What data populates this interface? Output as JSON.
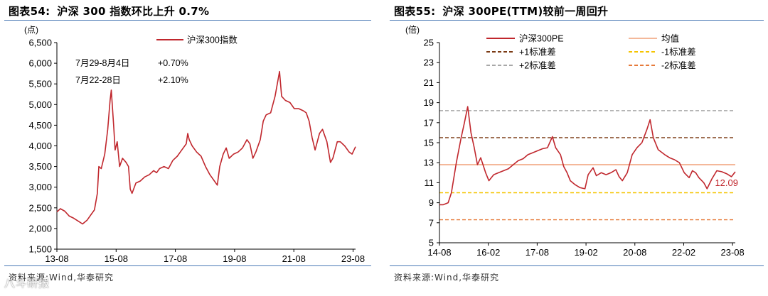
{
  "left": {
    "title_num": "图表54:",
    "title_text": "沪深 300 指数环比上升 0.7%",
    "source": "资料来源:Wind,华泰研究",
    "annotation_rows": [
      {
        "period": "7月29-8月4日",
        "change": "+0.70%"
      },
      {
        "period": "7月22-28日",
        "change": "+2.10%"
      }
    ]
  },
  "right": {
    "title_num": "图表55:",
    "title_text": "沪深 300PE(TTM)较前一周回升",
    "source": "资料来源:Wind,华泰研究",
    "end_label": "12.09"
  },
  "watermark": "八斗研报",
  "chart_data": [
    {
      "type": "line",
      "ylabel": "(点)",
      "ylim": [
        1500,
        6500
      ],
      "yticks": [
        1500,
        2000,
        2500,
        3000,
        3500,
        4000,
        4500,
        5000,
        5500,
        6000,
        6500
      ],
      "x_domain": [
        2013.583,
        2023.667
      ],
      "xticks": [
        {
          "v": 2013.583,
          "label": "13-08"
        },
        {
          "v": 2015.583,
          "label": "15-08"
        },
        {
          "v": 2017.583,
          "label": "17-08"
        },
        {
          "v": 2019.583,
          "label": "19-08"
        },
        {
          "v": 2021.583,
          "label": "21-08"
        },
        {
          "v": 2023.583,
          "label": "23-08"
        }
      ],
      "legend_position": "top-center",
      "grid": false,
      "series": [
        {
          "name": "沪深300指数",
          "color": "#c0272d",
          "points": [
            [
              2013.583,
              2400
            ],
            [
              2013.7,
              2480
            ],
            [
              2013.85,
              2420
            ],
            [
              2014.0,
              2300
            ],
            [
              2014.15,
              2250
            ],
            [
              2014.3,
              2180
            ],
            [
              2014.45,
              2110
            ],
            [
              2014.6,
              2200
            ],
            [
              2014.75,
              2350
            ],
            [
              2014.85,
              2450
            ],
            [
              2014.95,
              2850
            ],
            [
              2015.0,
              3500
            ],
            [
              2015.08,
              3450
            ],
            [
              2015.2,
              3800
            ],
            [
              2015.3,
              4400
            ],
            [
              2015.38,
              5100
            ],
            [
              2015.42,
              5350
            ],
            [
              2015.5,
              4500
            ],
            [
              2015.55,
              3900
            ],
            [
              2015.62,
              4100
            ],
            [
              2015.7,
              3500
            ],
            [
              2015.8,
              3700
            ],
            [
              2015.92,
              3600
            ],
            [
              2016.0,
              3500
            ],
            [
              2016.06,
              2950
            ],
            [
              2016.12,
              2850
            ],
            [
              2016.25,
              3100
            ],
            [
              2016.4,
              3150
            ],
            [
              2016.55,
              3250
            ],
            [
              2016.7,
              3300
            ],
            [
              2016.85,
              3400
            ],
            [
              2016.95,
              3350
            ],
            [
              2017.05,
              3450
            ],
            [
              2017.2,
              3500
            ],
            [
              2017.35,
              3450
            ],
            [
              2017.5,
              3650
            ],
            [
              2017.65,
              3750
            ],
            [
              2017.8,
              3900
            ],
            [
              2017.95,
              4050
            ],
            [
              2018.0,
              4300
            ],
            [
              2018.05,
              4150
            ],
            [
              2018.15,
              4000
            ],
            [
              2018.3,
              3850
            ],
            [
              2018.45,
              3750
            ],
            [
              2018.6,
              3500
            ],
            [
              2018.75,
              3300
            ],
            [
              2018.9,
              3150
            ],
            [
              2019.0,
              3050
            ],
            [
              2019.08,
              3500
            ],
            [
              2019.2,
              3800
            ],
            [
              2019.3,
              3950
            ],
            [
              2019.4,
              3700
            ],
            [
              2019.55,
              3800
            ],
            [
              2019.7,
              3850
            ],
            [
              2019.85,
              3950
            ],
            [
              2020.0,
              4150
            ],
            [
              2020.1,
              4050
            ],
            [
              2020.2,
              3700
            ],
            [
              2020.3,
              3850
            ],
            [
              2020.45,
              4150
            ],
            [
              2020.55,
              4600
            ],
            [
              2020.65,
              4750
            ],
            [
              2020.8,
              4800
            ],
            [
              2020.95,
              5200
            ],
            [
              2021.1,
              5800
            ],
            [
              2021.17,
              5200
            ],
            [
              2021.3,
              5100
            ],
            [
              2021.45,
              5050
            ],
            [
              2021.6,
              4900
            ],
            [
              2021.75,
              4900
            ],
            [
              2021.9,
              4850
            ],
            [
              2022.0,
              4800
            ],
            [
              2022.1,
              4600
            ],
            [
              2022.2,
              4200
            ],
            [
              2022.3,
              3900
            ],
            [
              2022.45,
              4300
            ],
            [
              2022.55,
              4400
            ],
            [
              2022.7,
              4100
            ],
            [
              2022.82,
              3600
            ],
            [
              2022.9,
              3700
            ],
            [
              2023.05,
              4100
            ],
            [
              2023.15,
              4100
            ],
            [
              2023.3,
              4000
            ],
            [
              2023.45,
              3850
            ],
            [
              2023.55,
              3800
            ],
            [
              2023.667,
              3980
            ]
          ]
        }
      ]
    },
    {
      "type": "line",
      "ylabel": "(倍)",
      "ylim": [
        5,
        25
      ],
      "yticks": [
        5,
        7,
        9,
        11,
        13,
        15,
        17,
        19,
        21,
        23,
        25
      ],
      "x_domain": [
        2014.583,
        2023.667
      ],
      "xticks": [
        {
          "v": 2014.583,
          "label": "14-08"
        },
        {
          "v": 2016.083,
          "label": "16-02"
        },
        {
          "v": 2017.583,
          "label": "17-08"
        },
        {
          "v": 2019.083,
          "label": "19-02"
        },
        {
          "v": 2020.583,
          "label": "20-08"
        },
        {
          "v": 2022.083,
          "label": "22-02"
        },
        {
          "v": 2023.583,
          "label": "23-08"
        }
      ],
      "legend_position": "top",
      "grid": false,
      "series": [
        {
          "name": "沪深300PE",
          "color": "#c0272d",
          "points": [
            [
              2014.583,
              8.8
            ],
            [
              2014.7,
              8.8
            ],
            [
              2014.85,
              9.0
            ],
            [
              2014.95,
              10.0
            ],
            [
              2015.1,
              13.0
            ],
            [
              2015.25,
              15.5
            ],
            [
              2015.35,
              17.0
            ],
            [
              2015.45,
              18.6
            ],
            [
              2015.55,
              16.0
            ],
            [
              2015.65,
              14.5
            ],
            [
              2015.75,
              12.8
            ],
            [
              2015.85,
              13.5
            ],
            [
              2016.0,
              12.0
            ],
            [
              2016.1,
              11.2
            ],
            [
              2016.25,
              11.8
            ],
            [
              2016.4,
              12.0
            ],
            [
              2016.55,
              12.2
            ],
            [
              2016.7,
              12.4
            ],
            [
              2016.85,
              12.8
            ],
            [
              2017.0,
              13.2
            ],
            [
              2017.15,
              13.4
            ],
            [
              2017.3,
              13.8
            ],
            [
              2017.45,
              14.0
            ],
            [
              2017.6,
              14.2
            ],
            [
              2017.75,
              14.4
            ],
            [
              2017.9,
              14.5
            ],
            [
              2018.05,
              15.6
            ],
            [
              2018.15,
              14.5
            ],
            [
              2018.3,
              13.8
            ],
            [
              2018.4,
              12.6
            ],
            [
              2018.5,
              12.0
            ],
            [
              2018.6,
              11.2
            ],
            [
              2018.75,
              10.8
            ],
            [
              2018.9,
              10.5
            ],
            [
              2019.05,
              10.4
            ],
            [
              2019.15,
              11.8
            ],
            [
              2019.3,
              12.5
            ],
            [
              2019.4,
              11.7
            ],
            [
              2019.55,
              12.0
            ],
            [
              2019.7,
              11.8
            ],
            [
              2019.85,
              12.0
            ],
            [
              2020.0,
              12.3
            ],
            [
              2020.1,
              11.6
            ],
            [
              2020.2,
              11.2
            ],
            [
              2020.35,
              12.0
            ],
            [
              2020.5,
              13.8
            ],
            [
              2020.65,
              14.5
            ],
            [
              2020.8,
              15.0
            ],
            [
              2020.95,
              16.3
            ],
            [
              2021.05,
              17.3
            ],
            [
              2021.15,
              15.5
            ],
            [
              2021.3,
              14.3
            ],
            [
              2021.5,
              13.8
            ],
            [
              2021.65,
              13.5
            ],
            [
              2021.8,
              13.3
            ],
            [
              2021.95,
              13.0
            ],
            [
              2022.1,
              12.0
            ],
            [
              2022.25,
              11.5
            ],
            [
              2022.35,
              12.2
            ],
            [
              2022.45,
              12.0
            ],
            [
              2022.55,
              11.5
            ],
            [
              2022.7,
              11.0
            ],
            [
              2022.8,
              10.4
            ],
            [
              2022.95,
              11.4
            ],
            [
              2023.1,
              12.2
            ],
            [
              2023.25,
              12.1
            ],
            [
              2023.4,
              11.9
            ],
            [
              2023.55,
              11.6
            ],
            [
              2023.667,
              12.09
            ]
          ]
        },
        {
          "name": "均值",
          "color": "#f4b89a",
          "dash": "",
          "value": 12.8
        },
        {
          "name": "+1标准差",
          "color": "#7b3a14",
          "dash": "5,3",
          "value": 15.5
        },
        {
          "name": "-1标准差",
          "color": "#f5c400",
          "dash": "5,3",
          "value": 10.0
        },
        {
          "name": "+2标准差",
          "color": "#a8a8a8",
          "dash": "5,3",
          "value": 18.2
        },
        {
          "name": "-2标准差",
          "color": "#e67a3a",
          "dash": "5,3",
          "value": 7.3
        }
      ]
    }
  ]
}
